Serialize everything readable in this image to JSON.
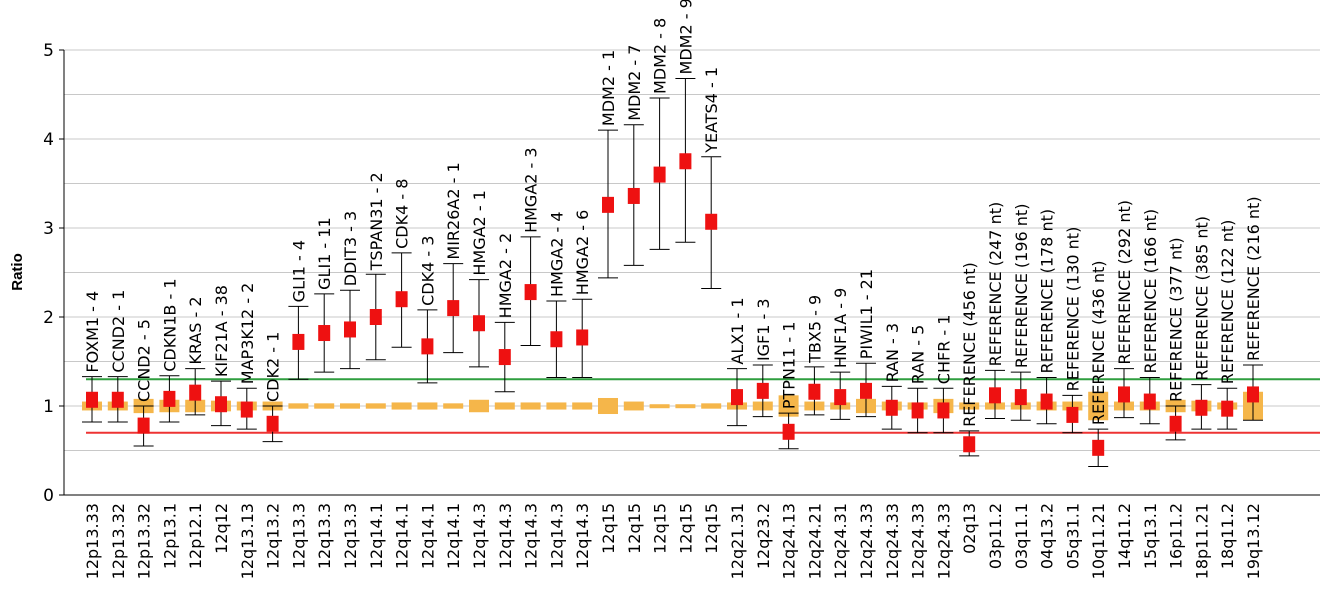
{
  "chart_data": {
    "type": "box",
    "ylabel": "Ratio",
    "ylim": [
      0,
      5
    ],
    "yticks": [
      "0",
      "1",
      "2",
      "3",
      "4",
      "5"
    ],
    "grid": true,
    "upper_threshold": 1.3,
    "lower_threshold": 0.7,
    "colors": {
      "marker": "#ee1111",
      "box": "#f5b64a",
      "whisker": "#000000",
      "upper_line": "#2f9e3f",
      "lower_line": "#ee3333",
      "grid": "#c8c8c8"
    },
    "categories": [
      "12p13.33",
      "12p13.32",
      "12p13.32",
      "12p13.1",
      "12p12.1",
      "12q12",
      "12q13.13",
      "12q13.2",
      "12q13.3",
      "12q13.3",
      "12q13.3",
      "12q14.1",
      "12q14.1",
      "12q14.1",
      "12q14.1",
      "12q14.3",
      "12q14.3",
      "12q14.3",
      "12q14.3",
      "12q14.3",
      "12q15",
      "12q15",
      "12q15",
      "12q15",
      "12q15",
      "12q21.31",
      "12q23.2",
      "12q24.13",
      "12q24.21",
      "12q24.31",
      "12q24.33",
      "12q24.33",
      "12q24.33",
      "12q24.33",
      "02q13",
      "03p11.2",
      "03q11.1",
      "04q13.2",
      "05q31.1",
      "10q11.21",
      "14q11.2",
      "15q13.1",
      "16p11.2",
      "18p11.21",
      "18q11.2",
      "19q13.12"
    ],
    "probes": [
      "FOXM1 - 4",
      "CCND2 - 1",
      "CCND2 - 5",
      "CDKN1B - 1",
      "KRAS - 2",
      "KIF21A - 38",
      "MAP3K12 - 2",
      "CDK2 - 1",
      "GLI1 - 4",
      "GLI1 - 11",
      "DDIT3 - 3",
      "TSPAN31 - 2",
      "CDK4 - 8",
      "CDK4 - 3",
      "MIR26A2 - 1",
      "HMGA2 - 1",
      "HMGA2 - 2",
      "HMGA2 - 3",
      "HMGA2 - 4",
      "HMGA2 - 6",
      "MDM2 - 1",
      "MDM2 - 7",
      "MDM2 - 8",
      "MDM2 - 9",
      "YEATS4 - 1",
      "ALX1 - 1",
      "IGF1 - 3",
      "PTPN11 - 1",
      "TBX5 - 9",
      "HNF1A - 9",
      "PIWIL1 - 21",
      "RAN - 3",
      "RAN - 5",
      "CHFR - 1",
      "REFERENCE (456 nt)",
      "REFERENCE (247 nt)",
      "REFERENCE (196 nt)",
      "REFERENCE (178 nt)",
      "REFERENCE (130 nt)",
      "REFERENCE (436 nt)",
      "REFERENCE (292 nt)",
      "REFERENCE (166 nt)",
      "REFERENCE (377 nt)",
      "REFERENCE (385 nt)",
      "REFERENCE (122 nt)",
      "REFERENCE (216 nt)"
    ],
    "ratio": [
      1.07,
      1.07,
      0.78,
      1.08,
      1.15,
      1.02,
      0.96,
      0.8,
      1.72,
      1.82,
      1.86,
      2.0,
      2.2,
      1.67,
      2.1,
      1.93,
      1.55,
      2.28,
      1.75,
      1.77,
      3.26,
      3.36,
      3.6,
      3.75,
      3.07,
      1.1,
      1.17,
      0.71,
      1.16,
      1.1,
      1.17,
      0.98,
      0.95,
      0.95,
      0.57,
      1.12,
      1.1,
      1.05,
      0.9,
      0.53,
      1.13,
      1.05,
      0.8,
      0.98,
      0.97,
      1.13
    ],
    "whisker_low": [
      0.82,
      0.82,
      0.55,
      0.82,
      0.9,
      0.78,
      0.74,
      0.6,
      1.3,
      1.38,
      1.42,
      1.52,
      1.66,
      1.26,
      1.6,
      1.44,
      1.16,
      1.68,
      1.32,
      1.32,
      2.44,
      2.58,
      2.76,
      2.84,
      2.32,
      0.78,
      0.88,
      0.52,
      0.9,
      0.85,
      0.88,
      0.74,
      0.7,
      0.7,
      0.44,
      0.86,
      0.84,
      0.8,
      0.7,
      0.32,
      0.87,
      0.8,
      0.62,
      0.74,
      0.74,
      0.84
    ],
    "whisker_high": [
      1.33,
      1.33,
      1.0,
      1.34,
      1.42,
      1.28,
      1.2,
      1.0,
      2.12,
      2.26,
      2.3,
      2.48,
      2.72,
      2.08,
      2.6,
      2.42,
      1.94,
      2.9,
      2.18,
      2.2,
      4.1,
      4.16,
      4.46,
      4.68,
      3.8,
      1.42,
      1.46,
      0.92,
      1.44,
      1.38,
      1.48,
      1.22,
      1.2,
      1.2,
      0.72,
      1.4,
      1.38,
      1.32,
      1.12,
      0.74,
      1.42,
      1.32,
      1.0,
      1.24,
      1.2,
      1.46
    ],
    "box_low": [
      0.95,
      0.95,
      0.92,
      0.93,
      0.93,
      0.94,
      0.95,
      0.95,
      0.97,
      0.97,
      0.97,
      0.97,
      0.96,
      0.96,
      0.97,
      0.93,
      0.96,
      0.96,
      0.96,
      0.96,
      0.91,
      0.95,
      0.98,
      0.98,
      0.97,
      0.96,
      0.95,
      0.88,
      0.95,
      0.96,
      0.92,
      0.95,
      0.96,
      0.92,
      0.96,
      0.96,
      0.96,
      0.95,
      0.95,
      0.84,
      0.95,
      0.95,
      0.93,
      0.94,
      0.96,
      0.84
    ],
    "box_high": [
      1.05,
      1.05,
      1.08,
      1.07,
      1.07,
      1.06,
      1.05,
      1.05,
      1.03,
      1.03,
      1.03,
      1.03,
      1.04,
      1.04,
      1.03,
      1.07,
      1.04,
      1.04,
      1.04,
      1.04,
      1.09,
      1.05,
      1.02,
      1.02,
      1.03,
      1.04,
      1.05,
      1.12,
      1.05,
      1.04,
      1.08,
      1.05,
      1.04,
      1.08,
      1.04,
      1.04,
      1.04,
      1.05,
      1.05,
      1.16,
      1.05,
      1.05,
      1.07,
      1.06,
      1.04,
      1.16
    ]
  }
}
